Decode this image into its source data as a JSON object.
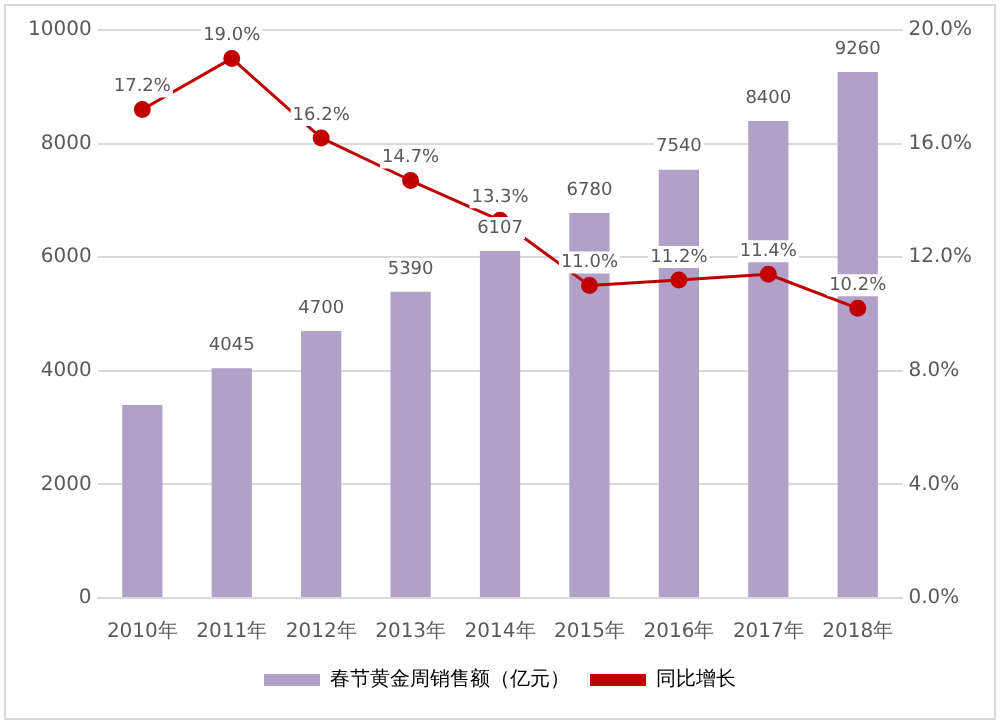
{
  "chart_data": {
    "type": "bar",
    "categories": [
      "2010年",
      "2011年",
      "2012年",
      "2013年",
      "2014年",
      "2015年",
      "2016年",
      "2017年",
      "2018年"
    ],
    "series": [
      {
        "name": "春节黄金周销售额（亿元）",
        "color": "#b1a0c7",
        "values": [
          3400,
          4045,
          4700,
          5390,
          6107,
          6780,
          7540,
          8400,
          9260
        ],
        "value_labels": [
          null,
          "4045",
          "4700",
          "5390",
          "6107",
          "6780",
          "7540",
          "8400",
          "9260"
        ]
      },
      {
        "name": "同比增长",
        "type": "line",
        "axis": "y2",
        "color": "#c00000",
        "values": [
          17.2,
          19.0,
          16.2,
          14.7,
          13.3,
          11.0,
          11.2,
          11.4,
          10.2
        ],
        "value_labels": [
          "17.2%",
          "19.0%",
          "16.2%",
          "14.7%",
          "13.3%",
          "11.0%",
          "11.2%",
          "11.4%",
          "10.2%"
        ]
      }
    ],
    "ylim": [
      0,
      10000
    ],
    "yticks": [
      0,
      2000,
      4000,
      6000,
      8000,
      10000
    ],
    "y2lim": [
      0,
      20
    ],
    "y2ticks": [
      {
        "value": 0,
        "label": "0.0%"
      },
      {
        "value": 4,
        "label": "4.0%"
      },
      {
        "value": 8,
        "label": "8.0%"
      },
      {
        "value": 12,
        "label": "12.0%"
      },
      {
        "value": 16,
        "label": "16.0%"
      },
      {
        "value": 20,
        "label": "20.0%"
      }
    ],
    "grid": "y",
    "legend": "bottom",
    "marker": "circle",
    "line_style": "solid"
  }
}
